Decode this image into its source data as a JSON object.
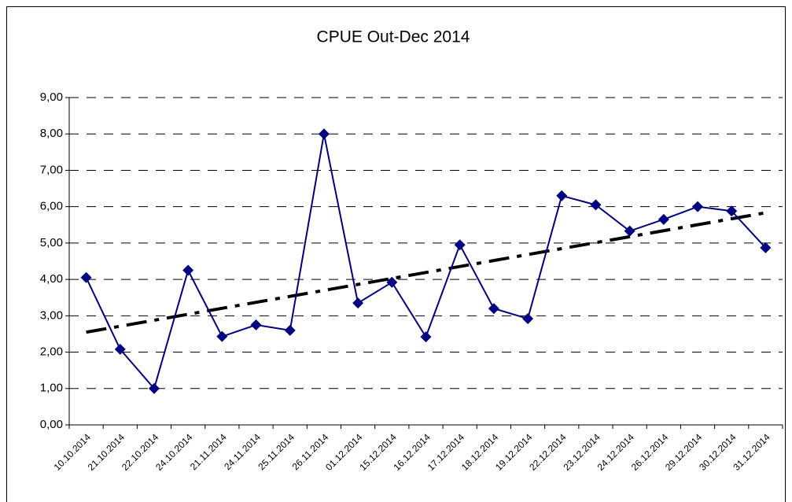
{
  "chart_data": {
    "type": "line",
    "title": "CPUE Out-Dec 2014",
    "categories": [
      "10.10.2014",
      "21.10.2014",
      "22.10.2014",
      "24.10.2014",
      "21.11.2014",
      "24.11.2014",
      "25.11.2014",
      "26.11.2014",
      "01.12.2014",
      "15.12.2014",
      "16.12.2014",
      "17.12.2014",
      "18.12.2014",
      "19.12.2014",
      "22.12.2014",
      "23.12.2014",
      "24.12.2014",
      "26.12.2014",
      "29.12.2014",
      "30.12.2014",
      "31.12.2014"
    ],
    "values": [
      4.05,
      2.08,
      1.0,
      4.25,
      2.43,
      2.75,
      2.6,
      8.0,
      3.35,
      3.92,
      2.42,
      4.95,
      3.2,
      2.92,
      6.3,
      6.05,
      5.33,
      5.65,
      6.0,
      5.88,
      4.87
    ],
    "color": "#000080",
    "trendline": true,
    "ylim": [
      0,
      9
    ],
    "yticks": [
      {
        "value": 0,
        "label": "0,00"
      },
      {
        "value": 1,
        "label": "1,00"
      },
      {
        "value": 2,
        "label": "2,00"
      },
      {
        "value": 3,
        "label": "3,00"
      },
      {
        "value": 4,
        "label": "4,00"
      },
      {
        "value": 5,
        "label": "5,00"
      },
      {
        "value": 6,
        "label": "6,00"
      },
      {
        "value": 7,
        "label": "7,00"
      },
      {
        "value": 8,
        "label": "8,00"
      },
      {
        "value": 9,
        "label": "9,00"
      }
    ],
    "grid": true
  }
}
